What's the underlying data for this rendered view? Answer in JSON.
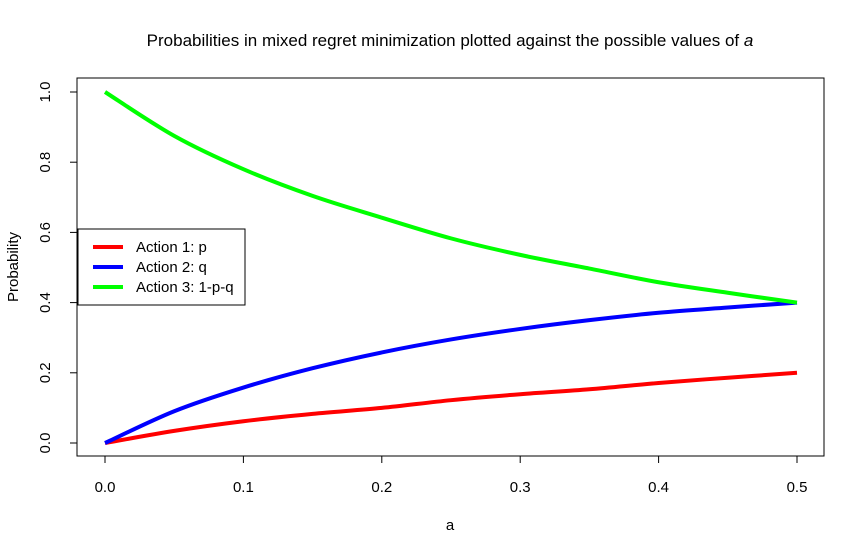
{
  "chart_data": {
    "type": "line",
    "title": "Probabilities in mixed regret minimization plotted against the possible values of ",
    "title_italic": "a",
    "xlabel": "a",
    "ylabel": "Probability",
    "xlim": [
      0,
      0.5
    ],
    "ylim": [
      0,
      1
    ],
    "x_ticks": [
      "0.0",
      "0.1",
      "0.2",
      "0.3",
      "0.4",
      "0.5"
    ],
    "y_ticks": [
      "0.0",
      "0.2",
      "0.4",
      "0.6",
      "0.8",
      "1.0"
    ],
    "grid": false,
    "legend": {
      "placement": "left",
      "entries": [
        "Action 1: p",
        "Action 2: q",
        "Action 3: 1-p-q"
      ]
    },
    "x": [
      0,
      0.05,
      0.1,
      0.15,
      0.2,
      0.25,
      0.3,
      0.35,
      0.4,
      0.45,
      0.5
    ],
    "series": [
      {
        "name": "Action 1: p",
        "color": "#ff0000",
        "values": [
          0.0,
          0.0345,
          0.062,
          0.083,
          0.1,
          0.122,
          0.139,
          0.153,
          0.171,
          0.186,
          0.2
        ]
      },
      {
        "name": "Action 2: q",
        "color": "#0000ff",
        "values": [
          0.0,
          0.0905,
          0.158,
          0.213,
          0.258,
          0.295,
          0.325,
          0.35,
          0.371,
          0.386,
          0.4
        ]
      },
      {
        "name": "Action 3: 1-p-q",
        "color": "#00ff00",
        "values": [
          1.0,
          0.875,
          0.78,
          0.704,
          0.642,
          0.583,
          0.536,
          0.497,
          0.458,
          0.428,
          0.4
        ]
      }
    ]
  }
}
